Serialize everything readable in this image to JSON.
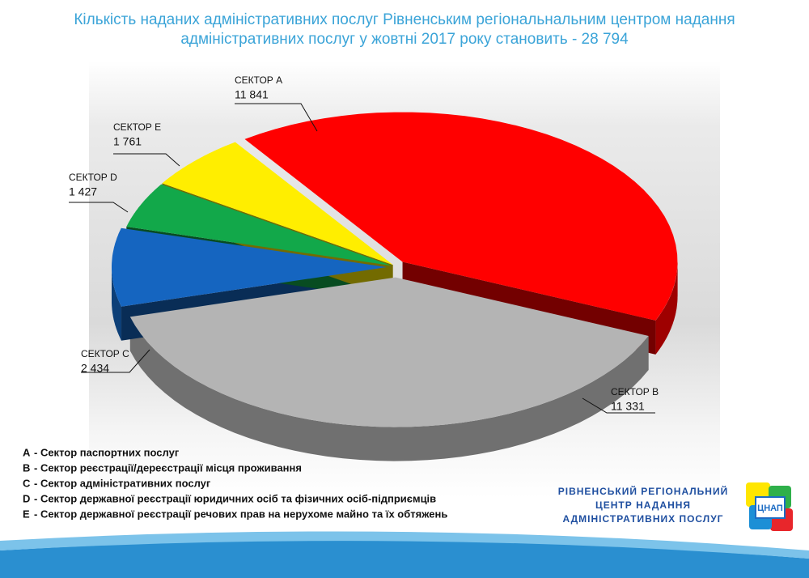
{
  "chart_data": {
    "type": "pie",
    "title": [
      "Кількість наданих адміністративних послуг Рівненським регіональнальним центром надання",
      "адміністративних послуг у жовтні 2017 року становить - 28 794"
    ],
    "categories": [
      "СЕКТОР А",
      "СЕКТОР В",
      "СЕКТОР С",
      "СЕКТОР D",
      "СЕКТОР Е"
    ],
    "values": [
      11841,
      11331,
      2434,
      1427,
      1761
    ],
    "value_labels": [
      "11 841",
      "11 331",
      "2 434",
      "1 427",
      "1 761"
    ],
    "colors": [
      "#ff0000",
      "#b4b4b4",
      "#1565c0",
      "#12a84a",
      "#ffee00"
    ],
    "legend": [
      {
        "key": "A",
        "text": "- Сектор паспортних послуг"
      },
      {
        "key": "B",
        "text": "- Сектор реєстрації/дереєстрації місця проживання"
      },
      {
        "key": "C",
        "text": "- Сектор адміністративних послуг"
      },
      {
        "key": "D",
        "text": "- Сектор державної реєстрації юридичних осіб та фізичних осіб-підприємців"
      },
      {
        "key": "E",
        "text": "- Сектор державної реєстрації речових прав на нерухоме майно та їх обтяжень"
      }
    ]
  },
  "logo": {
    "lines": [
      "РІВНЕНСЬКИЙ РЕГІОНАЛЬНИЙ",
      "ЦЕНТР НАДАННЯ",
      "АДМІНІСТРАТИВНИХ ПОСЛУГ"
    ],
    "icon": "ЦНАП"
  }
}
